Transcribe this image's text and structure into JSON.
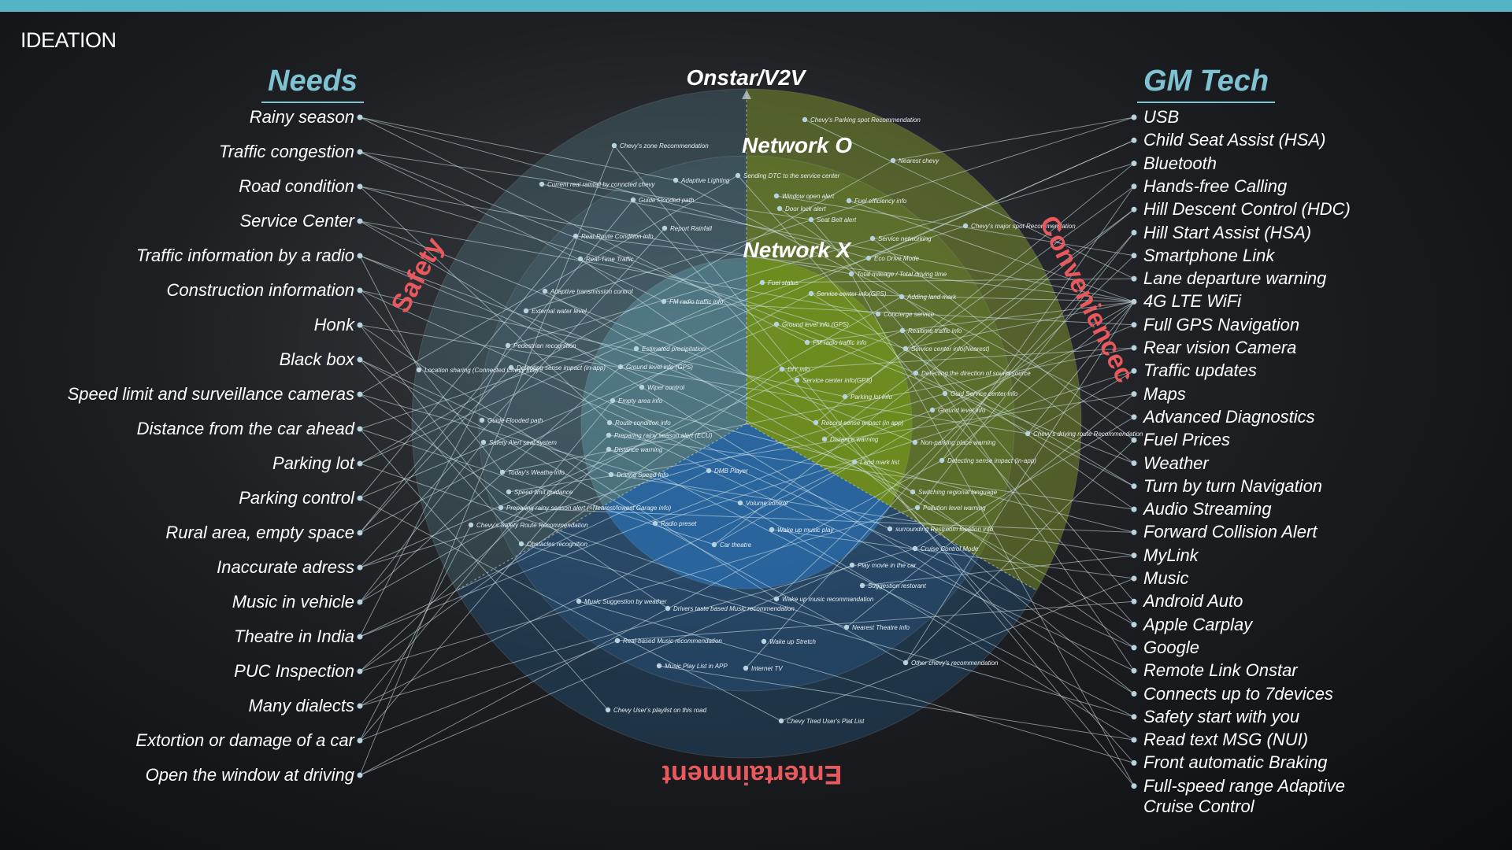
{
  "page": {
    "title": "IDEATION"
  },
  "needs": {
    "heading": "Needs",
    "items": [
      "Rainy season",
      "Traffic congestion",
      "Road condition",
      "Service Center",
      "Traffic information by a radio",
      "Construction information",
      "Honk",
      "Black box",
      "Speed limit and surveillance cameras",
      "Distance from the car ahead",
      "Parking lot",
      "Parking control",
      "Rural area, empty space",
      "Inaccurate adress",
      "Music in vehicle",
      "Theatre in India",
      "PUC Inspection",
      "Many dialects",
      "Extortion or damage of a car",
      "Open the window at driving"
    ]
  },
  "gm_tech": {
    "heading": "GM Tech",
    "items": [
      "USB",
      "Child Seat Assist (HSA)",
      "Bluetooth",
      "Hands-free Calling",
      "Hill Descent Control (HDC)",
      "Hill Start Assist (HSA)",
      "Smartphone Link",
      "Lane departure warning",
      "4G LTE WiFi",
      "Full GPS Navigation",
      "Rear vision Camera",
      "Traffic updates",
      "Maps",
      "Advanced Diagnostics",
      "Fuel Prices",
      "Weather",
      "Turn by turn Navigation",
      "Audio Streaming",
      "Forward Collision Alert",
      "MyLink",
      "Music",
      "Android Auto",
      "Apple Carplay",
      "Google",
      "Remote Link Onstar",
      "Connects up to 7devices",
      "Safety start with you",
      "Read text MSG (NUI)",
      "Front automatic Braking",
      "Full-speed range Adaptive Cruise Control"
    ]
  },
  "diagram": {
    "rings": {
      "outer": "Onstar/V2V",
      "middle": "Network O",
      "inner": "Network X"
    },
    "segments": {
      "safety": "Safety",
      "convenience": "Conveniencec",
      "entertainment": "Entertainment"
    },
    "colors": {
      "safety": "#4f8ea1",
      "convenience": "#7a9d25",
      "entertainment": "#2f6fa8",
      "accent": "#e8595e",
      "heading": "#7fc3d3",
      "topbar": "#55b3c6"
    },
    "ideas": [
      "Chevy's zone Recommendation",
      "Chevy's Parking spot Recommendation",
      "Current real rainfall by conncted chevy",
      "Adaptive Lighting",
      "Sending DTC to the service center",
      "Nearest chevy",
      "Guide Flooded path",
      "Window open alert",
      "Door lock alert",
      "Fuel efficiency info",
      "Seat Belt alert",
      "Chevy's major spot Recommendation",
      "Real-Route Condition info",
      "Report Rainfall",
      "Service networking",
      "Real-Time Traffic",
      "Eco Drive Mode",
      "Total mileage / Total driving time",
      "Fuel status",
      "Service center info(GPS)",
      "Adding land mark",
      "Adaptive transmission control",
      "External water level",
      "FM radio traffic info",
      "Concierge service",
      "Ground level info (GPS)",
      "Realtime traffic info",
      "Pedestrian recognition",
      "Estimated precipitation",
      "FM radio traffic info",
      "Service center info(Nearest)",
      "Location sharing (Connected Chevy info)",
      "Detecting sense impact (in-app)",
      "Ground level info (GPS)",
      "DIY info",
      "Service center info(GPS)",
      "Detecting the direction of sound source",
      "Wiper control",
      "Parking lot info",
      "Guid Service center info",
      "Ground level info",
      "Empty area info",
      "Guide Flooded path",
      "Route condition info",
      "Record sense impact (in app)",
      "Chevy's driving route Recommendation",
      "Safety Alert seat system",
      "Preparing rainy season alert (ECU)",
      "Distance warning",
      "Distance warning",
      "Non-parking place warning",
      "Today's Weathe info",
      "Driving Speed Info",
      "DMB Player",
      "Land mark list",
      "Detecting sense impact (in-app)",
      "Speed limit guidance",
      "Switching regional language",
      "Preparing rainy season alert (+Nearest/lowest Garage info)",
      "Volume control",
      "Pollution level warning",
      "Chevy's Safety Route Recommendation",
      "Radio preset",
      "Wake up music play",
      "surrounding Restroom location info",
      "Obstacles recognition",
      "Car theatre",
      "Cruise Control Mode",
      "Play movie in the car",
      "Suggestion restorant",
      "Music Suggestion by weather",
      "Wake up music recommandation",
      "Drivers taste based Music recommendation",
      "Nearest Theatre info",
      "Real-based Music recommendation",
      "Wake up Stretch",
      "Music Play List in APP",
      "Internet TV",
      "Other chevy's recommendation",
      "Chevy User's playlist on this road",
      "Chevy Tired User's Plat List"
    ]
  }
}
